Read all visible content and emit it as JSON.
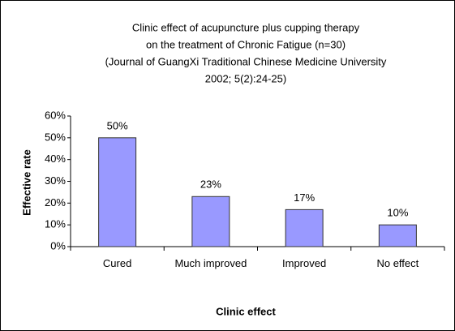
{
  "chart_data": {
    "type": "bar",
    "title": [
      "Clinic effect of acupuncture plus cupping therapy",
      "on the treatment of Chronic Fatigue (n=30)",
      "(Journal of GuangXi Traditional Chinese Medicine University",
      "2002; 5(2):24-25)"
    ],
    "x_label": "Clinic effect",
    "y_label": "Effective rate",
    "categories": [
      "Cured",
      "Much improved",
      "Improved",
      "No effect"
    ],
    "values": [
      50,
      23,
      17,
      10
    ],
    "value_labels": [
      "50%",
      "23%",
      "17%",
      "10%"
    ],
    "color": "#9999ff",
    "ylim": [
      0,
      60
    ],
    "yticks": [
      {
        "value": 0,
        "label": "0%"
      },
      {
        "value": 10,
        "label": "10%"
      },
      {
        "value": 20,
        "label": "20%"
      },
      {
        "value": 30,
        "label": "30%"
      },
      {
        "value": 40,
        "label": "40%"
      },
      {
        "value": 50,
        "label": "50%"
      },
      {
        "value": 60,
        "label": "60%"
      }
    ],
    "grid": false
  }
}
